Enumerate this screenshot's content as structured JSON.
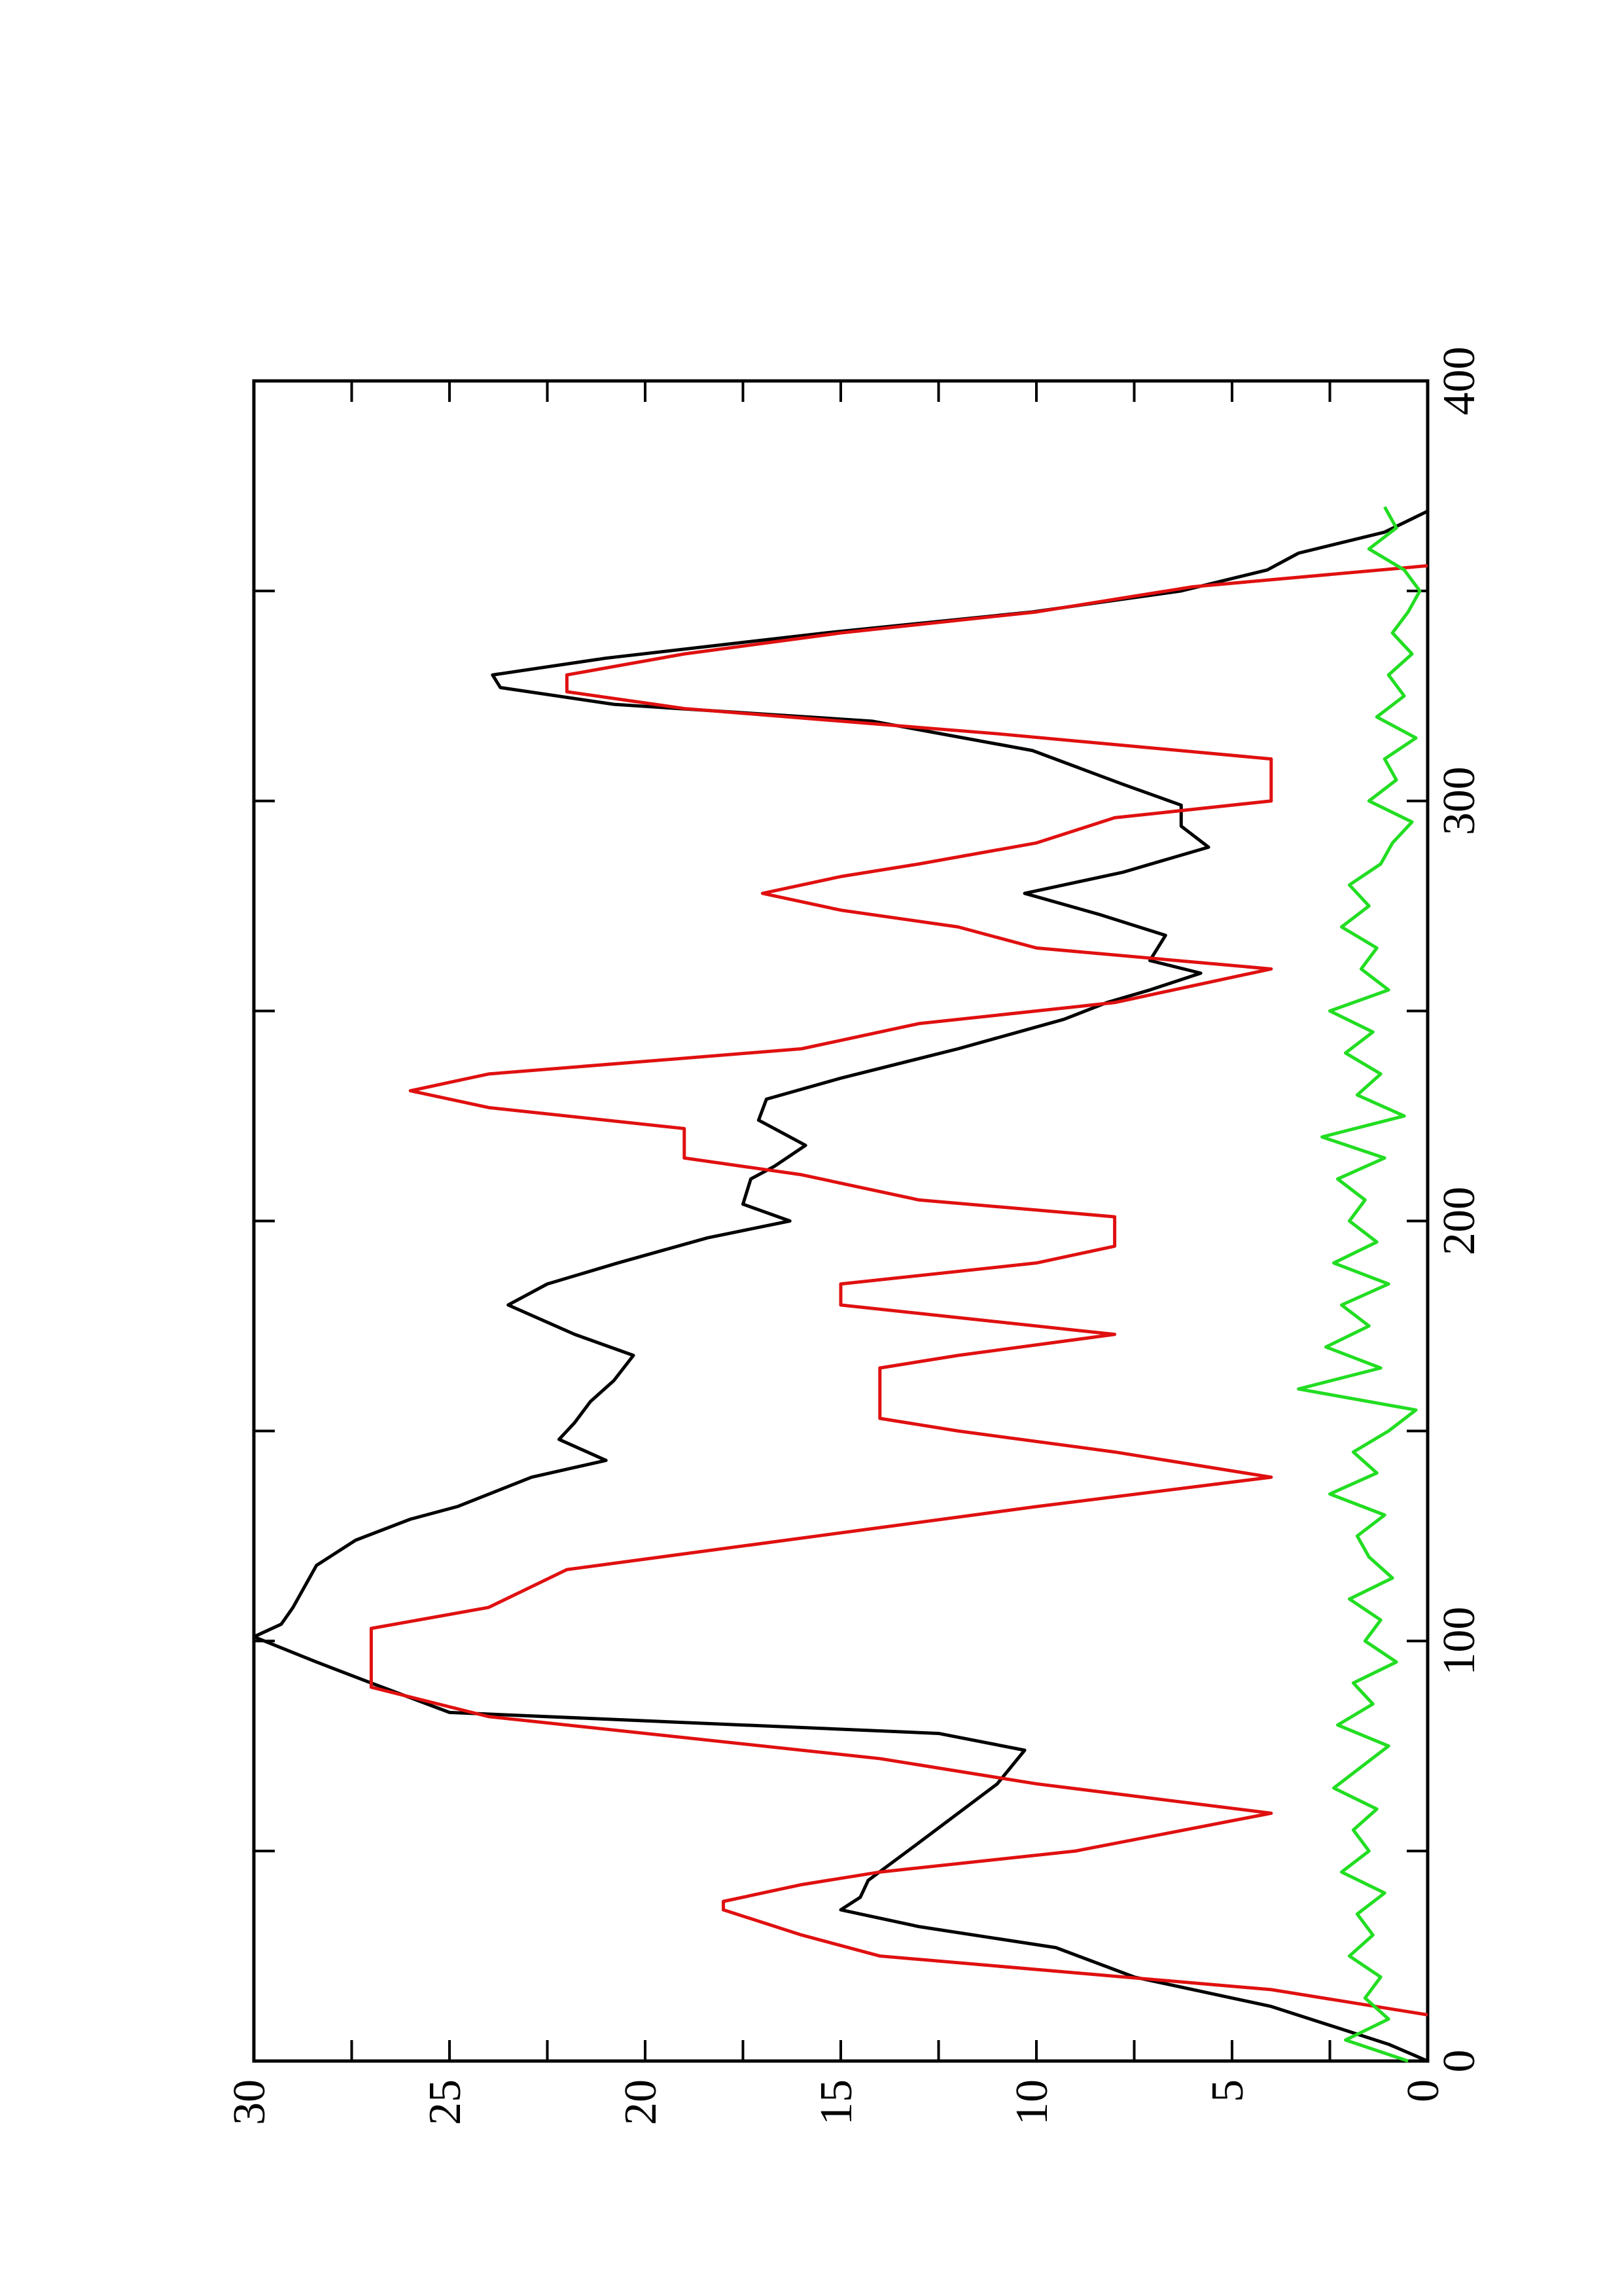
{
  "chart_data": {
    "type": "line",
    "xlim": [
      0,
      400
    ],
    "ylim": [
      0,
      30
    ],
    "xticks": [
      0,
      100,
      200,
      300,
      400
    ],
    "xminor_ticks": [
      50,
      150,
      250,
      350
    ],
    "yticks": [
      0,
      5,
      10,
      15,
      20,
      25,
      30
    ],
    "yminor_ticks": [
      2.5,
      7.5,
      12.5,
      17.5,
      22.5,
      27.5
    ],
    "series": [
      {
        "color": "#000000",
        "x": [
          0,
          4,
          13,
          20,
          27,
          32,
          36,
          39,
          43,
          52,
          59,
          66,
          74,
          78,
          83,
          90,
          95,
          101,
          104,
          108,
          113,
          118,
          124,
          129,
          132,
          139,
          143,
          148,
          152,
          157,
          162,
          168,
          173,
          180,
          185,
          190,
          196,
          200,
          204,
          210,
          213,
          218,
          224,
          229,
          234,
          241,
          248,
          252,
          255,
          259,
          262,
          268,
          273,
          278,
          283,
          289,
          294,
          299,
          304,
          312,
          319,
          323,
          327,
          330,
          334,
          340,
          345,
          350,
          355,
          359,
          364,
          369
        ],
        "values": [
          0,
          1,
          4,
          7.5,
          9.5,
          13,
          15,
          14.5,
          14.3,
          13,
          12,
          11,
          10.3,
          12.5,
          25,
          27,
          28.4,
          30,
          29.3,
          29,
          28.7,
          28.4,
          27.4,
          26,
          24.8,
          22.9,
          21,
          22.2,
          21.8,
          21.4,
          20.8,
          20.3,
          21.8,
          23.5,
          22.5,
          20.7,
          18.4,
          16.3,
          17.5,
          17.3,
          16.7,
          15.9,
          17.1,
          16.9,
          15,
          12,
          9.3,
          8.2,
          7.1,
          5.8,
          7.1,
          6.7,
          8.4,
          10.3,
          7.8,
          5.6,
          6.3,
          6.3,
          7.8,
          10.1,
          14.2,
          20.8,
          23.7,
          23.9,
          21,
          15.4,
          10.1,
          6.3,
          4.1,
          3.3,
          1.1,
          0
        ]
      },
      {
        "color": "#e01010",
        "x": [
          11,
          17,
          21,
          25,
          30,
          36,
          38,
          42,
          45,
          50,
          59,
          66,
          72,
          82,
          89,
          103,
          108,
          117,
          127,
          132,
          139,
          145,
          150,
          153,
          165,
          168,
          173,
          177,
          180,
          185,
          190,
          194,
          201,
          205,
          211,
          215,
          222,
          227,
          231,
          235,
          241,
          247,
          252,
          260,
          265,
          270,
          274,
          278,
          282,
          285,
          290,
          296,
          300,
          310,
          316,
          322,
          326,
          330,
          335,
          340,
          345,
          351,
          356
        ],
        "values": [
          0,
          4,
          9,
          14,
          16,
          18,
          18,
          16,
          14,
          9,
          4,
          10,
          14,
          24,
          27,
          27,
          24,
          22,
          14,
          10,
          4,
          8,
          12,
          14,
          14,
          12,
          8,
          12,
          15,
          15,
          10,
          8,
          8,
          13,
          16,
          19,
          19,
          24,
          26,
          24,
          16,
          13,
          8,
          4,
          10,
          12,
          15,
          17,
          15,
          13,
          10,
          8,
          4,
          4,
          11,
          19,
          22,
          22,
          19,
          15,
          10,
          6,
          0
        ]
      },
      {
        "color": "#22dd22",
        "x": [
          0,
          5,
          10,
          15,
          20,
          25,
          30,
          35,
          40,
          45,
          50,
          55,
          60,
          65,
          70,
          75,
          80,
          85,
          90,
          95,
          100,
          105,
          110,
          115,
          120,
          125,
          130,
          135,
          140,
          145,
          150,
          155,
          160,
          165,
          170,
          175,
          180,
          185,
          190,
          195,
          200,
          205,
          210,
          215,
          220,
          225,
          230,
          235,
          240,
          245,
          250,
          255,
          260,
          265,
          270,
          275,
          280,
          285,
          290,
          295,
          300,
          305,
          310,
          315,
          320,
          325,
          330,
          335,
          340,
          345,
          350,
          355,
          360,
          365,
          370
        ],
        "values": [
          0.5,
          2.1,
          1.0,
          1.6,
          1.2,
          2.0,
          1.4,
          1.8,
          1.1,
          2.2,
          1.5,
          1.9,
          1.3,
          2.4,
          1.7,
          1.0,
          2.3,
          1.4,
          1.9,
          0.8,
          1.6,
          1.2,
          2.0,
          0.9,
          1.5,
          1.8,
          1.1,
          2.5,
          1.3,
          1.9,
          1.0,
          0.3,
          3.3,
          1.2,
          2.6,
          1.5,
          2.2,
          1.0,
          2.4,
          1.3,
          2.0,
          1.6,
          2.3,
          1.1,
          2.7,
          0.6,
          1.8,
          1.2,
          2.1,
          1.4,
          2.5,
          1.0,
          1.7,
          1.3,
          2.2,
          1.5,
          2.0,
          1.2,
          0.9,
          0.4,
          1.5,
          0.8,
          1.1,
          0.3,
          1.3,
          0.6,
          1.0,
          0.4,
          0.9,
          0.5,
          0.2,
          0.6,
          1.5,
          0.8,
          1.1
        ]
      }
    ]
  }
}
